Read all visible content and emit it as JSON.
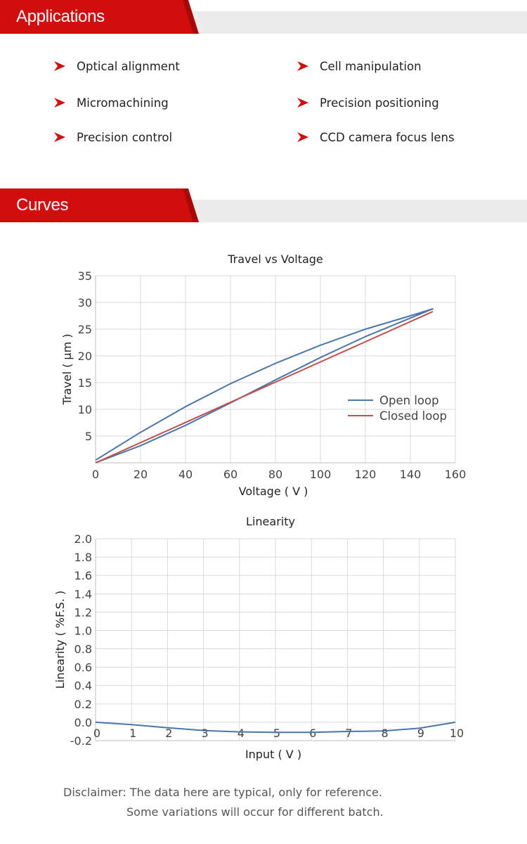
{
  "sections": {
    "applications": {
      "title": "Applications"
    },
    "curves": {
      "title": "Curves"
    }
  },
  "applications": {
    "bullet_icon": "red-arrowhead-icon",
    "items": [
      "Optical alignment",
      "Cell manipulation",
      "Micromachining",
      "Precision positioning",
      "Precision control",
      "CCD camera focus lens"
    ]
  },
  "colors": {
    "brand_red": "#d10d0d",
    "open_loop": "#4a76a8",
    "closed_loop": "#c0504d",
    "grid": "#d9d9d9"
  },
  "chart_data": [
    {
      "type": "line",
      "title": "Travel vs Voltage",
      "xlabel": "Voltage ( V )",
      "ylabel": "Travel ( μm )",
      "xlim": [
        0,
        160
      ],
      "ylim": [
        0,
        35
      ],
      "xticks": [
        "0",
        "20",
        "40",
        "60",
        "80",
        "100",
        "120",
        "140",
        "160"
      ],
      "yticks": [
        "5",
        "10",
        "15",
        "20",
        "25",
        "30",
        "35"
      ],
      "grid": true,
      "legend_position": "right",
      "series": [
        {
          "name": "Open loop",
          "color": "#4a76a8",
          "points": [
            [
              0,
              0
            ],
            [
              20,
              3.2
            ],
            [
              40,
              7.0
            ],
            [
              60,
              11.2
            ],
            [
              80,
              15.5
            ],
            [
              100,
              19.7
            ],
            [
              120,
              23.6
            ],
            [
              150,
              28.8
            ],
            [
              140,
              27.5
            ],
            [
              120,
              25.0
            ],
            [
              100,
              22.0
            ],
            [
              80,
              18.6
            ],
            [
              60,
              14.8
            ],
            [
              40,
              10.5
            ],
            [
              20,
              5.7
            ],
            [
              0,
              0.5
            ]
          ]
        },
        {
          "name": "Closed loop",
          "color": "#c0504d",
          "points": [
            [
              0,
              0
            ],
            [
              150,
              28.3
            ]
          ]
        }
      ]
    },
    {
      "type": "line",
      "title": "Linearity",
      "xlabel": "Input ( V )",
      "ylabel": "Linearity ( %F.S. )",
      "xlim": [
        0,
        10
      ],
      "ylim": [
        -0.2,
        2.0
      ],
      "xticks": [
        "0",
        "1",
        "2",
        "3",
        "4",
        "5",
        "6",
        "7",
        "8",
        "9",
        "10"
      ],
      "yticks": [
        "-0.2",
        "0.0",
        "0.2",
        "0.4",
        "0.6",
        "0.8",
        "1.0",
        "1.2",
        "1.4",
        "1.6",
        "1.8",
        "2.0"
      ],
      "grid": true,
      "series": [
        {
          "color": "#4a76a8",
          "points": [
            [
              0,
              0.0
            ],
            [
              1,
              -0.025
            ],
            [
              2,
              -0.06
            ],
            [
              3,
              -0.09
            ],
            [
              4,
              -0.105
            ],
            [
              5,
              -0.11
            ],
            [
              6,
              -0.11
            ],
            [
              7,
              -0.1
            ],
            [
              8,
              -0.095
            ],
            [
              9,
              -0.065
            ],
            [
              10,
              0.0
            ]
          ]
        }
      ]
    }
  ],
  "disclaimer": {
    "line1": "Disclaimer: The data here are typical, only for reference.",
    "line2": "Some variations will occur for different batch."
  }
}
